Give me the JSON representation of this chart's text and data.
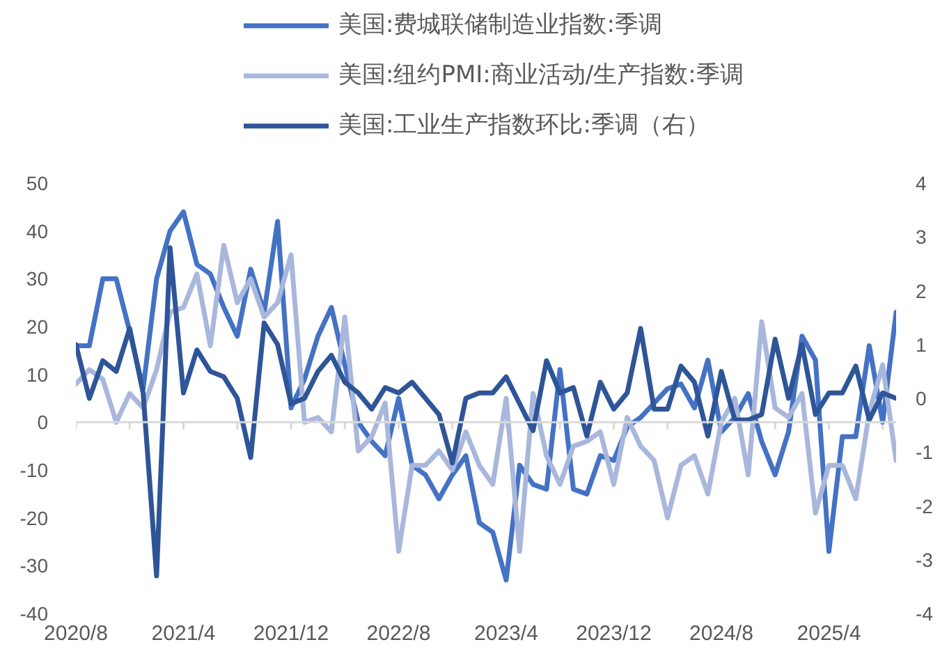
{
  "chart_data": {
    "type": "line",
    "x": [
      "2020-08",
      "2020-09",
      "2020-10",
      "2020-11",
      "2020-12",
      "2021-01",
      "2021-02",
      "2021-03",
      "2021-04",
      "2021-05",
      "2021-06",
      "2021-07",
      "2021-08",
      "2021-09",
      "2021-10",
      "2021-11",
      "2021-12",
      "2022-01",
      "2022-02",
      "2022-03",
      "2022-04",
      "2022-05",
      "2022-06",
      "2022-07",
      "2022-08",
      "2022-09",
      "2022-10",
      "2022-11",
      "2022-12",
      "2023-01",
      "2023-02",
      "2023-03",
      "2023-04",
      "2023-05",
      "2023-06",
      "2023-07",
      "2023-08",
      "2023-09",
      "2023-10",
      "2023-11",
      "2023-12",
      "2024-01",
      "2024-02",
      "2024-03",
      "2024-04",
      "2024-05",
      "2024-06",
      "2024-07",
      "2024-08",
      "2024-09",
      "2024-10",
      "2024-11",
      "2024-12",
      "2025-01",
      "2025-02",
      "2025-03",
      "2025-04",
      "2025-05",
      "2025-06",
      "2025-07",
      "2025-08",
      "2025-09"
    ],
    "series": [
      {
        "name": "美国:费城联储制造业指数:季调",
        "color": "#4472c4",
        "values": [
          16,
          16,
          30,
          30,
          19,
          7,
          30,
          40,
          44,
          33,
          31,
          24,
          18,
          32,
          23,
          42,
          3,
          9,
          18,
          24,
          12,
          0,
          -4,
          -7,
          5,
          -9,
          -11,
          -16,
          -11,
          -7,
          -21,
          -23,
          -33,
          -9,
          -13,
          -14,
          11,
          -14,
          -15,
          -7,
          -8,
          -1,
          1,
          4,
          7,
          8,
          3,
          13,
          -2,
          1,
          6,
          -4,
          -11,
          -2,
          18,
          13,
          -27,
          -3,
          -3,
          16,
          0,
          23
        ]
      },
      {
        "name": "美国:纽约PMI:商业活动/生产指数:季调",
        "color": "#a9b7dc",
        "values": [
          8,
          11,
          9,
          0,
          6,
          3,
          11,
          23,
          24,
          31,
          16,
          37,
          25,
          30,
          22,
          25,
          35,
          0,
          1,
          -2,
          22,
          -6,
          -3,
          4,
          -27,
          -9,
          -9,
          -6,
          -10,
          -2,
          -9,
          -13,
          5,
          -27,
          6,
          -7,
          -13,
          -5,
          -4,
          -2,
          -13,
          1,
          -5,
          -8,
          -20,
          -9,
          -7,
          -15,
          0,
          5,
          -11,
          21,
          3,
          1,
          6,
          -19,
          -9,
          -9,
          -16,
          2,
          12,
          -8
        ]
      },
      {
        "name": "美国:工业生产指数环比:季调（右）",
        "color": "#2e5597",
        "axis": "y2",
        "values": [
          1.0,
          0.0,
          0.7,
          0.5,
          1.3,
          0.1,
          -3.3,
          2.8,
          0.1,
          0.9,
          0.5,
          0.4,
          0.0,
          -1.1,
          1.4,
          1.0,
          -0.1,
          0.0,
          0.5,
          0.8,
          0.3,
          0.1,
          -0.2,
          0.2,
          0.1,
          0.3,
          0.0,
          -0.3,
          -1.2,
          0.0,
          0.1,
          0.1,
          0.4,
          -0.1,
          -0.6,
          0.7,
          0.1,
          0.2,
          -0.7,
          0.3,
          -0.2,
          0.1,
          1.3,
          -0.2,
          -0.2,
          0.6,
          0.3,
          -0.7,
          0.5,
          -0.4,
          -0.4,
          -0.3,
          1.1,
          0.0,
          1.0,
          -0.3,
          0.1,
          0.1,
          0.6,
          -0.4,
          0.1,
          0.0
        ]
      }
    ],
    "xlim": [
      "2020-08",
      "2025-09"
    ],
    "xticks": [
      {
        "value": "2020-08",
        "label": "2020/8"
      },
      {
        "value": "2020-12",
        "label": null
      },
      {
        "value": "2021-04",
        "label": "2021/4"
      },
      {
        "value": "2021-08",
        "label": null
      },
      {
        "value": "2021-12",
        "label": "2021/12"
      },
      {
        "value": "2022-04",
        "label": null
      },
      {
        "value": "2022-08",
        "label": "2022/8"
      },
      {
        "value": "2022-12",
        "label": null
      },
      {
        "value": "2023-04",
        "label": "2023/4"
      },
      {
        "value": "2023-08",
        "label": null
      },
      {
        "value": "2023-12",
        "label": "2023/12"
      },
      {
        "value": "2024-04",
        "label": null
      },
      {
        "value": "2024-08",
        "label": "2024/8"
      },
      {
        "value": "2024-12",
        "label": null
      },
      {
        "value": "2025-04",
        "label": "2025/4"
      },
      {
        "value": "2025-08",
        "label": null
      }
    ],
    "ylim": [
      -40,
      50
    ],
    "yticks": [
      -40,
      -30,
      -20,
      -10,
      0,
      10,
      20,
      30,
      40,
      50
    ],
    "y2lim": [
      -4,
      4
    ],
    "y2ticks": [
      -4,
      -3,
      -2,
      -1,
      0,
      1,
      2,
      3,
      4
    ],
    "ref_lines": [
      {
        "axis": "y",
        "value": 0,
        "color": "#d9d9d9"
      }
    ],
    "grid": false,
    "legend": "top"
  }
}
